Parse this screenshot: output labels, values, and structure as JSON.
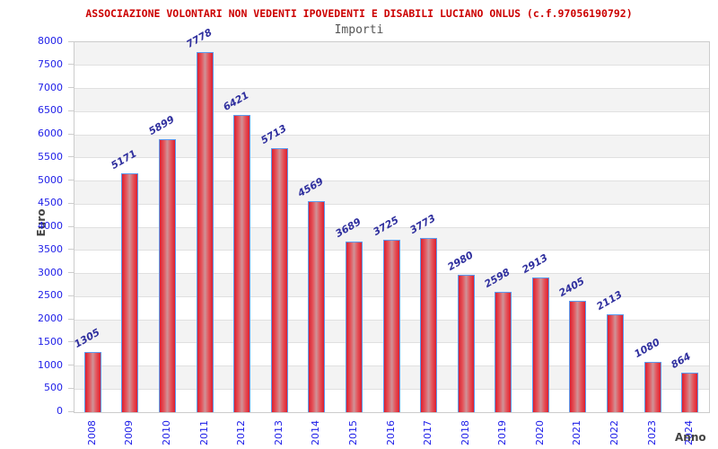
{
  "header": {
    "title": "ASSOCIAZIONE VOLONTARI NON VEDENTI IPOVEDENTI E DISABILI LUCIANO ONLUS (c.f.97056190792)",
    "subtitle": "Importi"
  },
  "chart_data": {
    "type": "bar",
    "title": "ASSOCIAZIONE VOLONTARI NON VEDENTI IPOVEDENTI E DISABILI LUCIANO ONLUS (c.f.97056190792)",
    "subtitle": "Importi",
    "categories": [
      "2008",
      "2009",
      "2010",
      "2011",
      "2012",
      "2013",
      "2014",
      "2015",
      "2016",
      "2017",
      "2018",
      "2019",
      "2020",
      "2021",
      "2022",
      "2023",
      "2024"
    ],
    "values": [
      1305,
      5171,
      5899,
      7778,
      6421,
      5713,
      4569,
      3689,
      3725,
      3773,
      2980,
      2598,
      2913,
      2405,
      2113,
      1080,
      864
    ],
    "xlabel": "Anno",
    "ylabel": "Euro",
    "ylim": [
      0,
      8000
    ],
    "ytick_step": 500,
    "yticks": [
      0,
      500,
      1000,
      1500,
      2000,
      2500,
      3000,
      3500,
      4000,
      4500,
      5000,
      5500,
      6000,
      6500,
      7000,
      7500,
      8000
    ],
    "grid": true,
    "legend": "none",
    "bands_alternating": true,
    "colors": {
      "title": "#cc0000",
      "subtitle": "#555555",
      "axis_title": "#444444",
      "tick_label": "#2020e8",
      "value_label": "#2f2f9e",
      "bar_edge": "#5b9bf0",
      "bar_fill_dark": "#dd1f2f",
      "bar_fill_mid": "#e4565c",
      "bar_fill_light": "#cf9398",
      "band_gray": "#f3f3f3",
      "band_white": "#ffffff",
      "grid_line": "#e0e0e0",
      "plot_border": "#cccccc",
      "background": "#ffffff"
    }
  }
}
